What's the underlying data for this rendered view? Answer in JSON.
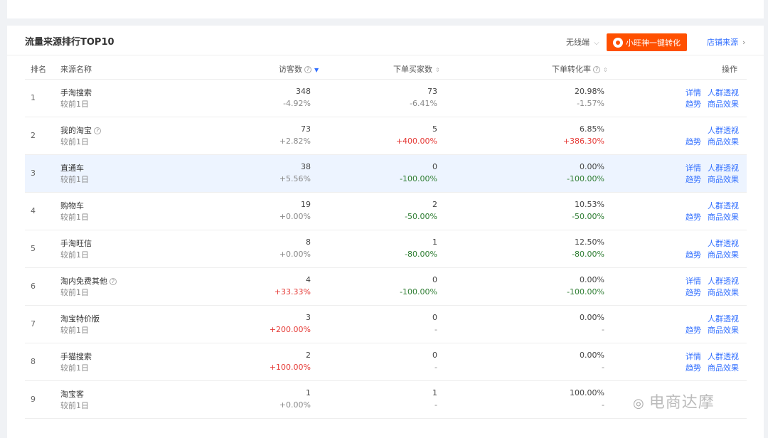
{
  "header": {
    "title": "流量来源排行TOP10",
    "device": "无线端",
    "cta_label": "小旺神一键转化",
    "shop_link": "店铺来源"
  },
  "columns": {
    "rank": "排名",
    "source": "来源名称",
    "visitors": "访客数",
    "buyers": "下单买家数",
    "conversion": "下单转化率",
    "ops": "操作"
  },
  "rows": [
    {
      "rank": "1",
      "name": "手淘搜索",
      "sub": "较前1日",
      "visitors": "348",
      "visitors_chg": "-4.92%",
      "visitors_dir": "neu",
      "buyers": "73",
      "buyers_chg": "-6.41%",
      "buyers_dir": "neu",
      "conv": "20.98%",
      "conv_chg": "-1.57%",
      "conv_dir": "neu",
      "ops1": [
        "详情",
        "人群透视"
      ],
      "ops2": [
        "趋势",
        "商品效果"
      ],
      "help": false
    },
    {
      "rank": "2",
      "name": "我的淘宝",
      "sub": "较前1日",
      "visitors": "73",
      "visitors_chg": "+2.82%",
      "visitors_dir": "neu",
      "buyers": "5",
      "buyers_chg": "+400.00%",
      "buyers_dir": "pos",
      "conv": "6.85%",
      "conv_chg": "+386.30%",
      "conv_dir": "pos",
      "ops1": [
        "",
        "人群透视"
      ],
      "ops2": [
        "趋势",
        "商品效果"
      ],
      "help": true
    },
    {
      "rank": "3",
      "name": "直通车",
      "sub": "较前1日",
      "visitors": "38",
      "visitors_chg": "+5.56%",
      "visitors_dir": "neu",
      "buyers": "0",
      "buyers_chg": "-100.00%",
      "buyers_dir": "neg",
      "conv": "0.00%",
      "conv_chg": "-100.00%",
      "conv_dir": "neg",
      "ops1": [
        "详情",
        "人群透视"
      ],
      "ops2": [
        "趋势",
        "商品效果"
      ],
      "help": false
    },
    {
      "rank": "4",
      "name": "购物车",
      "sub": "较前1日",
      "visitors": "19",
      "visitors_chg": "+0.00%",
      "visitors_dir": "neu",
      "buyers": "2",
      "buyers_chg": "-50.00%",
      "buyers_dir": "neg",
      "conv": "10.53%",
      "conv_chg": "-50.00%",
      "conv_dir": "neg",
      "ops1": [
        "",
        "人群透视"
      ],
      "ops2": [
        "趋势",
        "商品效果"
      ],
      "help": false
    },
    {
      "rank": "5",
      "name": "手淘旺信",
      "sub": "较前1日",
      "visitors": "8",
      "visitors_chg": "+0.00%",
      "visitors_dir": "neu",
      "buyers": "1",
      "buyers_chg": "-80.00%",
      "buyers_dir": "neg",
      "conv": "12.50%",
      "conv_chg": "-80.00%",
      "conv_dir": "neg",
      "ops1": [
        "",
        "人群透视"
      ],
      "ops2": [
        "趋势",
        "商品效果"
      ],
      "help": false
    },
    {
      "rank": "6",
      "name": "淘内免费其他",
      "sub": "较前1日",
      "visitors": "4",
      "visitors_chg": "+33.33%",
      "visitors_dir": "pos",
      "buyers": "0",
      "buyers_chg": "-100.00%",
      "buyers_dir": "neg",
      "conv": "0.00%",
      "conv_chg": "-100.00%",
      "conv_dir": "neg",
      "ops1": [
        "详情",
        "人群透视"
      ],
      "ops2": [
        "趋势",
        "商品效果"
      ],
      "help": true
    },
    {
      "rank": "7",
      "name": "淘宝特价版",
      "sub": "较前1日",
      "visitors": "3",
      "visitors_chg": "+200.00%",
      "visitors_dir": "pos",
      "buyers": "0",
      "buyers_chg": "-",
      "buyers_dir": "neu",
      "conv": "0.00%",
      "conv_chg": "-",
      "conv_dir": "neu",
      "ops1": [
        "",
        "人群透视"
      ],
      "ops2": [
        "趋势",
        "商品效果"
      ],
      "help": false
    },
    {
      "rank": "8",
      "name": "手猫搜索",
      "sub": "较前1日",
      "visitors": "2",
      "visitors_chg": "+100.00%",
      "visitors_dir": "pos",
      "buyers": "0",
      "buyers_chg": "-",
      "buyers_dir": "neu",
      "conv": "0.00%",
      "conv_chg": "-",
      "conv_dir": "neu",
      "ops1": [
        "详情",
        "人群透视"
      ],
      "ops2": [
        "趋势",
        "商品效果"
      ],
      "help": false
    },
    {
      "rank": "9",
      "name": "淘宝客",
      "sub": "较前1日",
      "visitors": "1",
      "visitors_chg": "+0.00%",
      "visitors_dir": "neu",
      "buyers": "1",
      "buyers_chg": "-",
      "buyers_dir": "neu",
      "conv": "100.00%",
      "conv_chg": "-",
      "conv_dir": "neu",
      "ops1": [
        "",
        ""
      ],
      "ops2": [
        "",
        ""
      ],
      "help": false
    }
  ],
  "watermark": "电商达摩"
}
